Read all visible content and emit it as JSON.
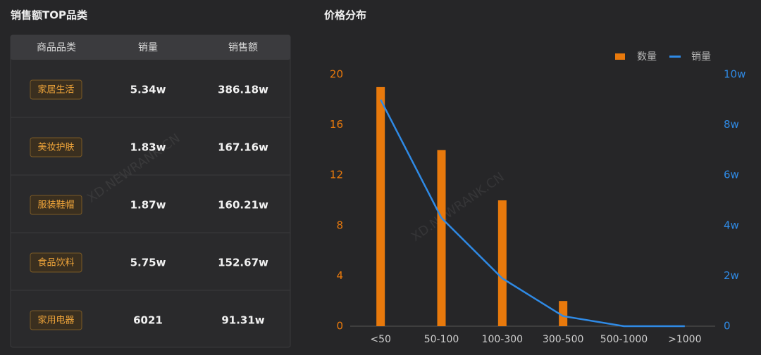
{
  "sales_top": {
    "title": "销售额TOP品类",
    "headers": [
      "商品品类",
      "销量",
      "销售额"
    ],
    "rows": [
      [
        "家居生活",
        "5.34w",
        "386.18w"
      ],
      [
        "美妆护肤",
        "1.83w",
        "167.16w"
      ],
      [
        "服装鞋帽",
        "1.87w",
        "160.21w"
      ],
      [
        "食品饮料",
        "5.75w",
        "152.67w"
      ],
      [
        "家用电器",
        "6021",
        "91.31w"
      ]
    ]
  },
  "watermark": "XD.NEWRANK.CN",
  "chart_data": {
    "type": "bar",
    "title": "价格分布",
    "categories": [
      "<50",
      "50-100",
      "100-300",
      "300-500",
      "500-1000",
      ">1000"
    ],
    "series": [
      {
        "name": "数量",
        "type": "bar",
        "color": "#e8790c",
        "values": [
          19,
          14,
          10,
          2,
          0,
          0
        ]
      },
      {
        "name": "销量",
        "type": "line",
        "axis": "y2",
        "color": "#2f8ae5",
        "values": [
          9.0,
          4.3,
          1.9,
          0.4,
          0,
          0
        ]
      }
    ],
    "ylim": [
      0,
      20
    ],
    "yticks": [
      0,
      4,
      8,
      12,
      16,
      20
    ],
    "y2lim": [
      0,
      10
    ],
    "y2ticks": [
      0,
      {
        "value": 2,
        "label": "2w"
      },
      {
        "value": 4,
        "label": "4w"
      },
      {
        "value": 6,
        "label": "6w"
      },
      {
        "value": 8,
        "label": "8w"
      },
      {
        "value": 10,
        "label": "10w"
      }
    ],
    "legend": "top-right",
    "grid": false
  }
}
